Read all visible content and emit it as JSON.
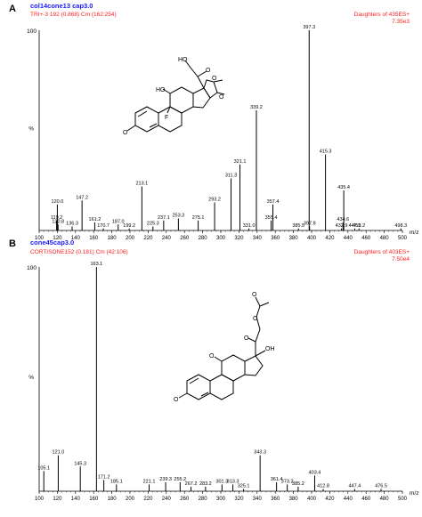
{
  "panels": [
    {
      "label": "A",
      "file": "col14cone13 cap3.0",
      "scan": "TRI+-3 192 (0.868) Cm (162:254)",
      "daughters": "Daughters of 435ES+",
      "intensity": "7.35e3",
      "yaxis": {
        "top": "100",
        "pct": "%"
      },
      "xlabel": "m/z",
      "chart_data": {
        "type": "bar",
        "xlim": [
          100,
          500
        ],
        "ylim": [
          0,
          100
        ],
        "xticks": [
          100,
          120,
          140,
          160,
          180,
          200,
          220,
          240,
          260,
          280,
          300,
          320,
          340,
          360,
          380,
          400,
          420,
          440,
          460,
          480,
          500
        ],
        "peaks": [
          {
            "mz": 119.2,
            "y": 5,
            "label": "119.2"
          },
          {
            "mz": 120.0,
            "y": 13,
            "label": "120.0"
          },
          {
            "mz": 120.8,
            "y": 3,
            "label": "120.8"
          },
          {
            "mz": 136.3,
            "y": 2,
            "label": "136.3"
          },
          {
            "mz": 147.2,
            "y": 15,
            "label": "147.2"
          },
          {
            "mz": 161.2,
            "y": 4,
            "label": "161.2"
          },
          {
            "mz": 170.7,
            "y": 1,
            "label": "170.7"
          },
          {
            "mz": 187.0,
            "y": 3,
            "label": "187.0"
          },
          {
            "mz": 199.2,
            "y": 1,
            "label": "199.2"
          },
          {
            "mz": 213.1,
            "y": 22,
            "label": "213.1"
          },
          {
            "mz": 225.3,
            "y": 2,
            "label": "225.3"
          },
          {
            "mz": 237.1,
            "y": 5,
            "label": "237.1"
          },
          {
            "mz": 253.3,
            "y": 6,
            "label": "253.3"
          },
          {
            "mz": 275.1,
            "y": 5,
            "label": "275.1"
          },
          {
            "mz": 293.2,
            "y": 14,
            "label": "293.2"
          },
          {
            "mz": 311.3,
            "y": 26,
            "label": "311.3"
          },
          {
            "mz": 321.1,
            "y": 33,
            "label": "321.1"
          },
          {
            "mz": 331.0,
            "y": 1,
            "label": "331.0"
          },
          {
            "mz": 339.2,
            "y": 60,
            "label": "339.2"
          },
          {
            "mz": 355.4,
            "y": 5,
            "label": "355.4"
          },
          {
            "mz": 357.4,
            "y": 13,
            "label": "357.4"
          },
          {
            "mz": 385.5,
            "y": 1,
            "label": "385.5"
          },
          {
            "mz": 397.3,
            "y": 100,
            "label": "397.3"
          },
          {
            "mz": 397.8,
            "y": 2,
            "label": "397.8"
          },
          {
            "mz": 415.3,
            "y": 38,
            "label": "415.3"
          },
          {
            "mz": 432.9,
            "y": 1,
            "label": "432.9"
          },
          {
            "mz": 434.6,
            "y": 4,
            "label": "434.6"
          },
          {
            "mz": 435.4,
            "y": 20,
            "label": "435.4"
          },
          {
            "mz": 447.5,
            "y": 1,
            "label": "447.5"
          },
          {
            "mz": 452.2,
            "y": 1,
            "label": "452.2"
          },
          {
            "mz": 498.3,
            "y": 1,
            "label": "498.3"
          }
        ]
      }
    },
    {
      "label": "B",
      "file": "cone45cap3.0",
      "scan": "CORTISONE152 (0.181) Cm (42:106)",
      "daughters": "Daughters of 403ES+",
      "intensity": "7.50e4",
      "yaxis": {
        "top": "100",
        "pct": "%"
      },
      "xlabel": "m/z",
      "chart_data": {
        "type": "bar",
        "xlim": [
          100,
          500
        ],
        "ylim": [
          0,
          100
        ],
        "xticks": [
          100,
          120,
          140,
          160,
          180,
          200,
          220,
          240,
          260,
          280,
          300,
          320,
          340,
          360,
          380,
          400,
          420,
          440,
          460,
          480,
          500
        ],
        "peaks": [
          {
            "mz": 105.1,
            "y": 9,
            "label": "105.1"
          },
          {
            "mz": 121.0,
            "y": 16,
            "label": "121.0"
          },
          {
            "mz": 145.3,
            "y": 11,
            "label": "145.3"
          },
          {
            "mz": 163.1,
            "y": 100,
            "label": "163.1"
          },
          {
            "mz": 171.2,
            "y": 5,
            "label": "171.2"
          },
          {
            "mz": 185.1,
            "y": 3,
            "label": "185.1"
          },
          {
            "mz": 221.1,
            "y": 3,
            "label": "221.1"
          },
          {
            "mz": 239.3,
            "y": 4,
            "label": "239.3"
          },
          {
            "mz": 255.2,
            "y": 4,
            "label": "255.2"
          },
          {
            "mz": 267.2,
            "y": 2,
            "label": "267.2"
          },
          {
            "mz": 283.2,
            "y": 2,
            "label": "283.2"
          },
          {
            "mz": 301.3,
            "y": 3,
            "label": "301.3"
          },
          {
            "mz": 313.3,
            "y": 3,
            "label": "313.3"
          },
          {
            "mz": 325.1,
            "y": 1,
            "label": "325.1"
          },
          {
            "mz": 343.3,
            "y": 16,
            "label": "343.3"
          },
          {
            "mz": 361.4,
            "y": 4,
            "label": "361.4"
          },
          {
            "mz": 373.2,
            "y": 3,
            "label": "373.2"
          },
          {
            "mz": 385.2,
            "y": 2,
            "label": "385.2"
          },
          {
            "mz": 403.4,
            "y": 7,
            "label": "403.4"
          },
          {
            "mz": 412.8,
            "y": 1,
            "label": "412.8"
          },
          {
            "mz": 447.4,
            "y": 1,
            "label": "447.4"
          },
          {
            "mz": 476.5,
            "y": 1,
            "label": "476.5"
          }
        ]
      }
    }
  ],
  "colors": {
    "file": "#1a1aff",
    "scan": "#ff2020",
    "spectrum": "#000000",
    "axis": "#000000"
  }
}
